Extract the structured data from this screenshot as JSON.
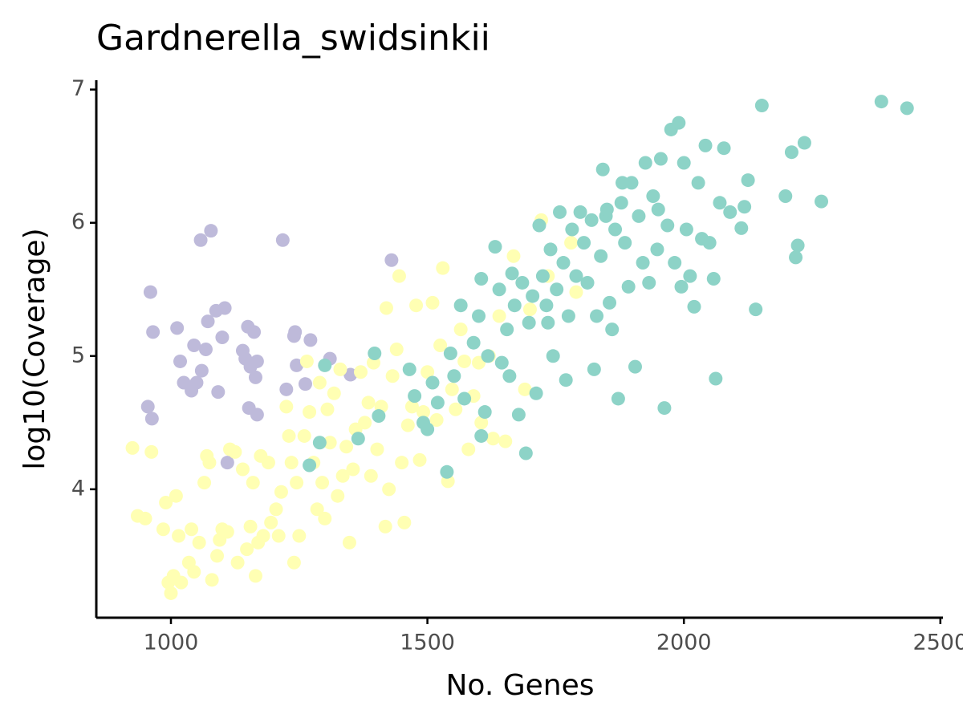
{
  "chart_data": {
    "type": "scatter",
    "title": "Gardnerella_swidsinkii",
    "x_label": "No. Genes",
    "y_label": "log10(Coverage)",
    "xlim": [
      854.5,
      2505
    ],
    "ylim": [
      3.036,
      7.07
    ],
    "xticks": [
      1000,
      1500,
      2000,
      2500
    ],
    "yticks": [
      4,
      5,
      6,
      7
    ],
    "series": [
      {
        "color": "#bebada",
        "x": [
          960,
          965,
          955,
          963,
          1012,
          1018,
          1025,
          1045,
          1040,
          1060,
          1058,
          1078,
          1068,
          1072,
          1088,
          1105,
          1100,
          1092,
          1110,
          1140,
          1150,
          1162,
          1155,
          1168,
          1165,
          1152,
          1168,
          1218,
          1225,
          1242,
          1240,
          1245,
          1262,
          1272,
          1310,
          1350,
          1430,
          1050,
          1145
        ],
        "values": [
          5.48,
          5.18,
          4.62,
          4.53,
          5.21,
          4.96,
          4.8,
          5.08,
          4.74,
          4.89,
          5.87,
          5.94,
          5.05,
          5.26,
          5.34,
          5.36,
          5.14,
          4.73,
          4.2,
          5.04,
          5.22,
          5.18,
          4.92,
          4.96,
          4.84,
          4.61,
          4.56,
          5.87,
          4.75,
          5.18,
          5.15,
          4.93,
          4.79,
          5.12,
          4.98,
          4.86,
          5.72,
          4.8,
          4.98
        ]
      },
      {
        "color": "#ffffb3",
        "x": [
          925,
          935,
          950,
          962,
          985,
          990,
          995,
          1000,
          1005,
          1010,
          1015,
          1020,
          1035,
          1040,
          1045,
          1055,
          1065,
          1070,
          1075,
          1080,
          1090,
          1095,
          1100,
          1110,
          1115,
          1125,
          1130,
          1140,
          1148,
          1155,
          1160,
          1165,
          1170,
          1175,
          1180,
          1190,
          1195,
          1205,
          1210,
          1215,
          1225,
          1230,
          1235,
          1240,
          1245,
          1250,
          1260,
          1265,
          1270,
          1278,
          1285,
          1290,
          1295,
          1300,
          1305,
          1310,
          1318,
          1325,
          1330,
          1335,
          1342,
          1348,
          1355,
          1360,
          1370,
          1378,
          1385,
          1390,
          1395,
          1402,
          1410,
          1418,
          1420,
          1425,
          1432,
          1440,
          1445,
          1450,
          1455,
          1462,
          1470,
          1478,
          1485,
          1492,
          1500,
          1510,
          1518,
          1525,
          1530,
          1540,
          1548,
          1555,
          1565,
          1572,
          1580,
          1590,
          1600,
          1605,
          1620,
          1628,
          1640,
          1652,
          1668,
          1690,
          1700,
          1722,
          1735,
          1790,
          1780
        ],
        "values": [
          4.31,
          3.8,
          3.78,
          4.28,
          3.7,
          3.9,
          3.3,
          3.22,
          3.35,
          3.95,
          3.65,
          3.3,
          3.45,
          3.7,
          3.38,
          3.6,
          4.05,
          4.25,
          4.2,
          3.32,
          3.5,
          3.62,
          3.7,
          3.68,
          4.3,
          4.28,
          3.45,
          4.15,
          3.55,
          3.72,
          4.05,
          3.35,
          3.6,
          4.25,
          3.65,
          4.2,
          3.75,
          3.85,
          3.65,
          3.98,
          4.62,
          4.4,
          4.2,
          3.45,
          4.05,
          3.65,
          4.4,
          4.96,
          4.58,
          4.2,
          3.85,
          4.8,
          4.05,
          3.78,
          4.6,
          4.35,
          4.72,
          3.95,
          4.9,
          4.1,
          4.32,
          3.6,
          4.15,
          4.45,
          4.88,
          4.5,
          4.65,
          4.1,
          4.95,
          4.3,
          4.62,
          3.72,
          5.36,
          4.0,
          4.85,
          5.05,
          5.6,
          4.2,
          3.75,
          4.48,
          4.62,
          5.38,
          4.22,
          4.58,
          4.88,
          5.4,
          4.52,
          5.08,
          5.66,
          4.06,
          4.75,
          4.6,
          5.2,
          4.96,
          4.3,
          4.7,
          4.95,
          4.5,
          5.0,
          4.38,
          5.3,
          4.36,
          5.75,
          4.75,
          5.35,
          6.02,
          5.6,
          5.48,
          5.85
        ]
      },
      {
        "color": "#8dd3c7",
        "x": [
          1270,
          1290,
          1300,
          1365,
          1397,
          1405,
          1465,
          1475,
          1492,
          1500,
          1510,
          1520,
          1538,
          1545,
          1552,
          1565,
          1572,
          1590,
          1600,
          1605,
          1612,
          1618,
          1632,
          1640,
          1645,
          1655,
          1660,
          1665,
          1670,
          1678,
          1685,
          1692,
          1698,
          1705,
          1712,
          1718,
          1725,
          1732,
          1740,
          1745,
          1752,
          1758,
          1765,
          1770,
          1775,
          1782,
          1790,
          1798,
          1805,
          1812,
          1820,
          1825,
          1830,
          1838,
          1842,
          1848,
          1855,
          1860,
          1866,
          1872,
          1878,
          1885,
          1892,
          1898,
          1905,
          1912,
          1920,
          1925,
          1932,
          1940,
          1948,
          1955,
          1962,
          1968,
          1975,
          1982,
          1990,
          1995,
          2000,
          2005,
          2012,
          2020,
          2028,
          2035,
          2042,
          2050,
          2058,
          2062,
          2070,
          2078,
          2090,
          2112,
          2118,
          2125,
          2140,
          2152,
          2198,
          2210,
          2218,
          2222,
          2235,
          2268,
          2385,
          2435,
          1605,
          1735,
          1850,
          1950,
          1880
        ],
        "values": [
          4.18,
          4.35,
          4.93,
          4.38,
          5.02,
          4.55,
          4.9,
          4.7,
          4.5,
          4.45,
          4.8,
          4.65,
          4.13,
          5.02,
          4.85,
          5.38,
          4.68,
          5.1,
          5.3,
          4.4,
          4.58,
          5.0,
          5.82,
          5.5,
          4.95,
          5.2,
          4.85,
          5.62,
          5.38,
          4.56,
          5.55,
          4.27,
          5.25,
          5.45,
          4.72,
          5.98,
          5.6,
          5.38,
          5.8,
          5.0,
          5.5,
          6.08,
          5.7,
          4.82,
          5.3,
          5.95,
          5.6,
          6.08,
          5.85,
          5.55,
          6.02,
          4.9,
          5.3,
          5.75,
          6.4,
          6.05,
          5.4,
          5.2,
          5.95,
          4.68,
          6.15,
          5.85,
          5.52,
          6.3,
          4.92,
          6.05,
          5.7,
          6.45,
          5.55,
          6.2,
          5.8,
          6.48,
          4.61,
          5.98,
          6.7,
          5.7,
          6.75,
          5.52,
          6.45,
          5.95,
          5.6,
          5.37,
          6.3,
          5.88,
          6.58,
          5.85,
          5.58,
          4.83,
          6.15,
          6.56,
          6.08,
          5.96,
          6.12,
          6.32,
          5.35,
          6.88,
          6.2,
          6.53,
          5.74,
          5.83,
          6.6,
          6.16,
          6.91,
          6.86,
          5.58,
          5.25,
          6.1,
          6.1,
          6.3
        ]
      }
    ]
  }
}
